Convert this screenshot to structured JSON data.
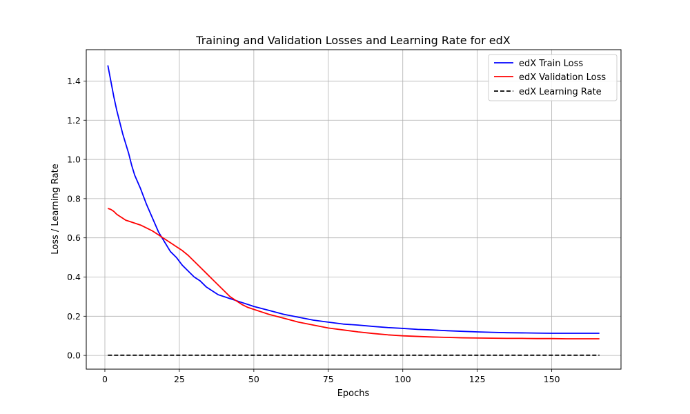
{
  "chart_data": {
    "type": "line",
    "title": "Training and Validation Losses and Learning Rate for edX",
    "xlabel": "Epochs",
    "ylabel": "Loss / Learning Rate",
    "xlim": [
      -6.25,
      173.25
    ],
    "ylim": [
      -0.07,
      1.56
    ],
    "xticks": [
      0,
      25,
      50,
      75,
      100,
      125,
      150
    ],
    "yticks": [
      0.0,
      0.2,
      0.4,
      0.6,
      0.8,
      1.0,
      1.2,
      1.4
    ],
    "grid": true,
    "legend_position": "top-right",
    "series": [
      {
        "name": "edX Train Loss",
        "color": "#0000ff",
        "style": "solid",
        "x": [
          1,
          2,
          3,
          4,
          5,
          6,
          7,
          8,
          9,
          10,
          12,
          14,
          16,
          18,
          20,
          22,
          24,
          26,
          28,
          30,
          32,
          34,
          36,
          38,
          40,
          42,
          44,
          46,
          48,
          50,
          55,
          60,
          65,
          70,
          75,
          80,
          85,
          90,
          95,
          100,
          105,
          110,
          115,
          120,
          125,
          130,
          135,
          140,
          145,
          150,
          155,
          160,
          166
        ],
        "values": [
          1.48,
          1.4,
          1.32,
          1.25,
          1.19,
          1.13,
          1.08,
          1.03,
          0.97,
          0.92,
          0.85,
          0.77,
          0.7,
          0.63,
          0.58,
          0.53,
          0.5,
          0.46,
          0.43,
          0.4,
          0.38,
          0.35,
          0.33,
          0.31,
          0.3,
          0.29,
          0.28,
          0.27,
          0.26,
          0.25,
          0.23,
          0.21,
          0.195,
          0.18,
          0.17,
          0.16,
          0.155,
          0.148,
          0.142,
          0.138,
          0.133,
          0.13,
          0.126,
          0.123,
          0.12,
          0.118,
          0.116,
          0.115,
          0.114,
          0.113,
          0.113,
          0.113,
          0.113
        ]
      },
      {
        "name": "edX Validation Loss",
        "color": "#ff0000",
        "style": "solid",
        "x": [
          1,
          2,
          3,
          4,
          5,
          6,
          7,
          8,
          10,
          12,
          14,
          16,
          18,
          20,
          22,
          24,
          26,
          28,
          30,
          32,
          34,
          36,
          38,
          40,
          42,
          44,
          46,
          48,
          50,
          55,
          60,
          65,
          70,
          75,
          80,
          85,
          90,
          95,
          100,
          105,
          110,
          115,
          120,
          125,
          130,
          135,
          140,
          145,
          150,
          155,
          160,
          166
        ],
        "values": [
          0.75,
          0.745,
          0.735,
          0.72,
          0.71,
          0.7,
          0.69,
          0.685,
          0.675,
          0.665,
          0.65,
          0.635,
          0.615,
          0.595,
          0.575,
          0.555,
          0.535,
          0.51,
          0.48,
          0.45,
          0.42,
          0.39,
          0.36,
          0.33,
          0.3,
          0.28,
          0.26,
          0.245,
          0.235,
          0.21,
          0.19,
          0.17,
          0.155,
          0.14,
          0.13,
          0.12,
          0.112,
          0.105,
          0.1,
          0.097,
          0.094,
          0.092,
          0.09,
          0.089,
          0.088,
          0.087,
          0.087,
          0.086,
          0.086,
          0.085,
          0.085,
          0.085
        ]
      },
      {
        "name": "edX Learning Rate",
        "color": "#000000",
        "style": "dashed",
        "x": [
          1,
          166
        ],
        "values": [
          0.001,
          0.001
        ]
      }
    ]
  }
}
